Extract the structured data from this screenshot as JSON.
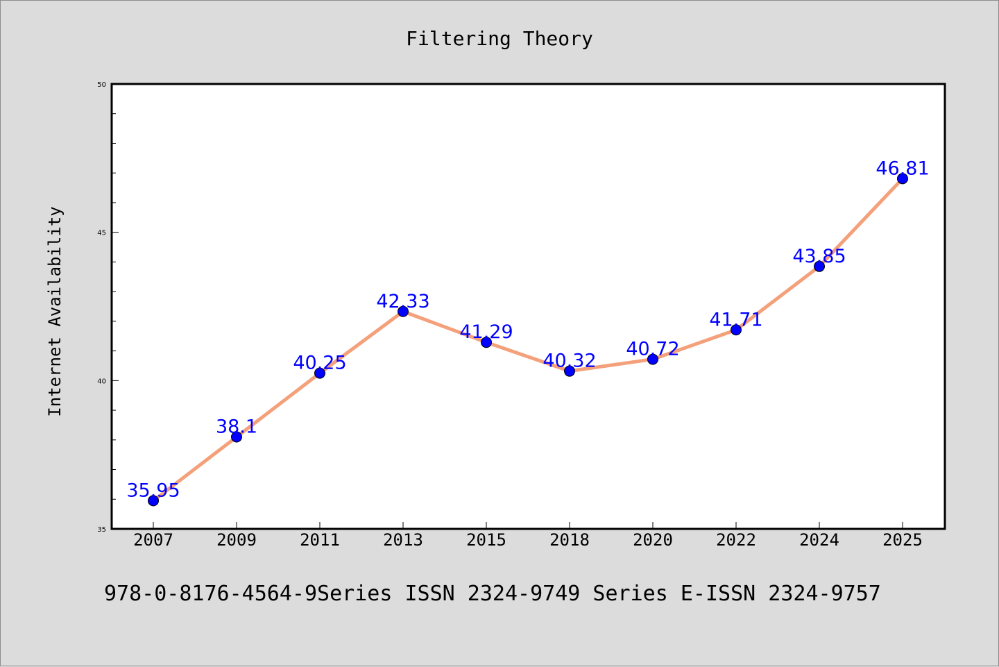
{
  "chart_data": {
    "type": "line",
    "title": "Filtering Theory",
    "xlabel": "",
    "ylabel": "Internet Availability",
    "categories": [
      "2007",
      "2009",
      "2011",
      "2013",
      "2015",
      "2018",
      "2020",
      "2022",
      "2024",
      "2025"
    ],
    "series": [
      {
        "values": [
          35.95,
          38.1,
          40.25,
          42.33,
          41.29,
          40.32,
          40.72,
          41.71,
          43.85,
          46.81
        ],
        "data_labels": [
          "35.95",
          "38.1",
          "40.25",
          "42.33",
          "41.29",
          "40.32",
          "40.72",
          "41.71",
          "43.85",
          "46.81"
        ]
      }
    ],
    "ylim": [
      35,
      50
    ],
    "yticks": [
      "35",
      "40",
      "45",
      "50"
    ],
    "grid": false,
    "legend": "none",
    "colors": {
      "line": "#f4a07a",
      "marker": "#0000ff",
      "data_label": "#0000ff",
      "background": "#dcdcdc",
      "plot_area": "#ffffff"
    }
  },
  "footer": "978-0-8176-4564-9Series ISSN 2324-9749 Series E-ISSN 2324-9757"
}
